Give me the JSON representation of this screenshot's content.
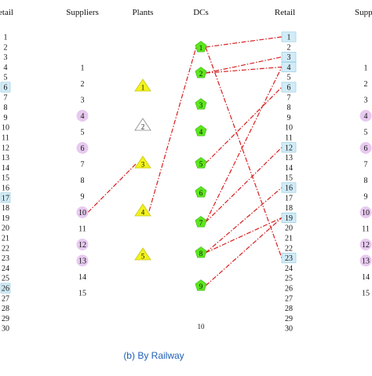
{
  "headers": {
    "retail_left": "etail",
    "suppliers": "Suppliers",
    "plants": "Plants",
    "dcs": "DCs",
    "retail": "Retail",
    "suppliers_right": "Suppli"
  },
  "caption": "(b) By Railway",
  "colors": {
    "link": "#d81e1e",
    "plant_fill": "#f2f21c",
    "dc_fill": "#5ce61c",
    "supplier_highlight": "#e7c9ef",
    "retail_highlight": "#d2ecf7",
    "caption": "#1f5fb7"
  },
  "left_retail": {
    "labels": [
      "1",
      "2",
      "3",
      "4",
      "5",
      "6",
      "7",
      "8",
      "9",
      "10",
      "11",
      "12",
      "13",
      "14",
      "15",
      "16",
      "17",
      "18",
      "19",
      "20",
      "21",
      "22",
      "23",
      "24",
      "25",
      "26",
      "27",
      "28",
      "29",
      "30"
    ],
    "highlighted": [
      "6",
      "17",
      "26"
    ]
  },
  "suppliers": [
    {
      "label": "1",
      "selected": false
    },
    {
      "label": "2",
      "selected": false
    },
    {
      "label": "3",
      "selected": false
    },
    {
      "label": "4",
      "selected": true
    },
    {
      "label": "5",
      "selected": false
    },
    {
      "label": "6",
      "selected": true
    },
    {
      "label": "7",
      "selected": false
    },
    {
      "label": "8",
      "selected": false
    },
    {
      "label": "9",
      "selected": false
    },
    {
      "label": "10",
      "selected": true
    },
    {
      "label": "11",
      "selected": false
    },
    {
      "label": "12",
      "selected": true
    },
    {
      "label": "13",
      "selected": true
    },
    {
      "label": "14",
      "selected": false
    },
    {
      "label": "15",
      "selected": false
    }
  ],
  "plants": [
    {
      "label": "1",
      "open": true
    },
    {
      "label": "2",
      "open": false
    },
    {
      "label": "3",
      "open": true
    },
    {
      "label": "4",
      "open": true
    },
    {
      "label": "5",
      "open": true
    }
  ],
  "dcs": [
    {
      "label": "1",
      "open": true
    },
    {
      "label": "2",
      "open": true
    },
    {
      "label": "3",
      "open": true
    },
    {
      "label": "4",
      "open": true
    },
    {
      "label": "5",
      "open": true
    },
    {
      "label": "6",
      "open": true
    },
    {
      "label": "7",
      "open": true
    },
    {
      "label": "8",
      "open": true
    },
    {
      "label": "9",
      "open": true
    },
    {
      "label": "10",
      "open": false
    }
  ],
  "retail": {
    "labels": [
      "1",
      "2",
      "3",
      "4",
      "5",
      "6",
      "7",
      "8",
      "9",
      "10",
      "11",
      "12",
      "13",
      "14",
      "15",
      "16",
      "17",
      "18",
      "19",
      "20",
      "21",
      "22",
      "23",
      "24",
      "25",
      "26",
      "27",
      "28",
      "29",
      "30"
    ],
    "highlighted": [
      "1",
      "3",
      "4",
      "6",
      "12",
      "16",
      "19",
      "23"
    ]
  },
  "suppliers_right": [
    {
      "label": "1",
      "selected": false
    },
    {
      "label": "2",
      "selected": false
    },
    {
      "label": "3",
      "selected": false
    },
    {
      "label": "4",
      "selected": true
    },
    {
      "label": "5",
      "selected": false
    },
    {
      "label": "6",
      "selected": true
    },
    {
      "label": "7",
      "selected": false
    },
    {
      "label": "8",
      "selected": false
    },
    {
      "label": "9",
      "selected": false
    },
    {
      "label": "10",
      "selected": true
    },
    {
      "label": "11",
      "selected": false
    },
    {
      "label": "12",
      "selected": true
    },
    {
      "label": "13",
      "selected": true
    },
    {
      "label": "14",
      "selected": false
    },
    {
      "label": "15",
      "selected": false
    }
  ],
  "links": [
    {
      "from": "supplier:10",
      "to": "plant:3"
    },
    {
      "from": "plant:4",
      "to": "dc:1"
    },
    {
      "from": "dc:1",
      "to": "retail:1"
    },
    {
      "from": "dc:1",
      "to": "retail:23"
    },
    {
      "from": "dc:2",
      "to": "retail:3"
    },
    {
      "from": "dc:2",
      "to": "retail:4"
    },
    {
      "from": "dc:5",
      "to": "retail:6"
    },
    {
      "from": "dc:7",
      "to": "retail:12"
    },
    {
      "from": "dc:7",
      "to": "retail:4"
    },
    {
      "from": "dc:8",
      "to": "retail:16"
    },
    {
      "from": "dc:8",
      "to": "retail:19"
    },
    {
      "from": "dc:9",
      "to": "retail:19"
    }
  ]
}
